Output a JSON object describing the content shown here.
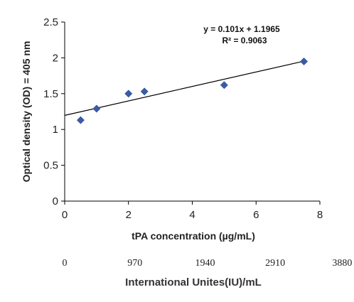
{
  "chart_data": {
    "type": "scatter",
    "title": "",
    "xlabel": "tPA concentration (µg/mL)",
    "ylabel": "Optical density (OD) = 405 nm",
    "xlim": [
      0,
      8
    ],
    "ylim": [
      0,
      2.5
    ],
    "x_ticks": [
      "0",
      "2",
      "4",
      "6",
      "8"
    ],
    "y_ticks": [
      "0",
      "0.5",
      "1",
      "1.5",
      "2",
      "2.5"
    ],
    "grid": false,
    "legend": "none",
    "series": [
      {
        "x": [
          0.5,
          1,
          2,
          2.5,
          5,
          7.5
        ],
        "y": [
          1.13,
          1.29,
          1.5,
          1.53,
          1.62,
          1.95
        ],
        "marker_color": "#3a5ba8"
      }
    ],
    "trendline": {
      "slope": 0.101,
      "intercept": 1.1965,
      "x_range": [
        0,
        7.5
      ],
      "equation_label": "y = 0.101x + 1.1965",
      "r2_label": "R² = 0.9063"
    },
    "secondary_axis": {
      "label": "International Unites(IU)/mL",
      "ticks": [
        {
          "label": "0",
          "x": 0
        },
        {
          "label": "970",
          "x": 2.2
        },
        {
          "label": "1940",
          "x": 4.4
        },
        {
          "label": "2910",
          "x": 6.6
        },
        {
          "label": "3880",
          "x": 8.7
        }
      ]
    }
  }
}
